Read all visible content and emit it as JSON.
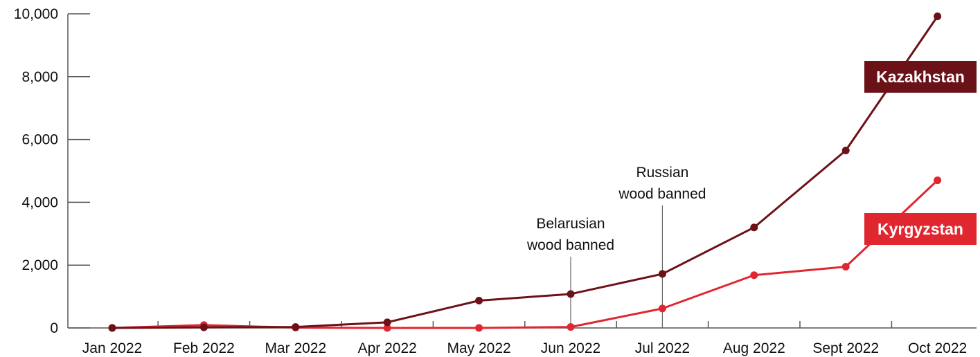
{
  "chart_data": {
    "type": "line",
    "categories": [
      "Jan 2022",
      "Feb 2022",
      "Mar 2022",
      "Apr 2022",
      "May 2022",
      "Jun 2022",
      "Jul 2022",
      "Aug 2022",
      "Sept 2022",
      "Oct 2022"
    ],
    "series": [
      {
        "name": "Kazakhstan",
        "color": "#6b1218",
        "values": [
          0,
          20,
          30,
          180,
          870,
          1080,
          1720,
          3200,
          5650,
          9920
        ]
      },
      {
        "name": "Kyrgyzstan",
        "color": "#e0262f",
        "values": [
          0,
          90,
          10,
          0,
          0,
          30,
          620,
          1680,
          1950,
          4700
        ]
      }
    ],
    "yticks": [
      "0",
      "2,000",
      "4,000",
      "6,000",
      "8,000",
      "10,000"
    ],
    "ylim": [
      0,
      10000
    ],
    "annotations": [
      {
        "text": [
          "Belarusian",
          "wood banned"
        ],
        "category": "Jun 2022"
      },
      {
        "text": [
          "Russian",
          "wood banned"
        ],
        "category": "Jul 2022"
      }
    ],
    "legend": "series labels at right end of lines",
    "grid": false
  }
}
